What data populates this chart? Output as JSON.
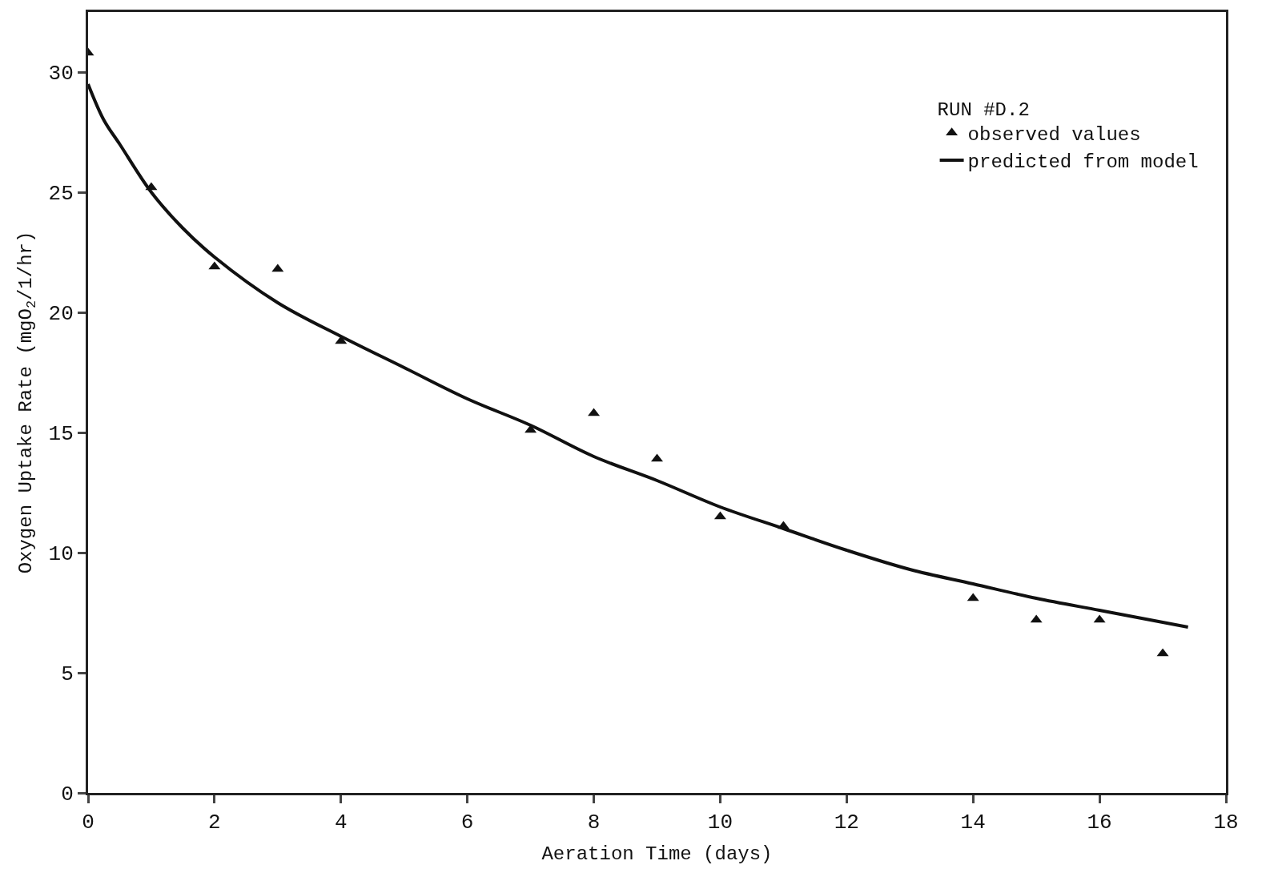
{
  "chart_data": {
    "type": "scatter",
    "xlabel": "Aeration Time (days)",
    "ylabel": "Oxygen Uptake Rate (mgO$_{2}$/1/hr)",
    "legend_title": "RUN #D.2",
    "xlim": [
      0,
      18
    ],
    "xticks": [
      0,
      2,
      4,
      6,
      8,
      10,
      12,
      14,
      16,
      18
    ],
    "ylim": [
      0,
      32.5
    ],
    "yticks": [
      0,
      5,
      10,
      15,
      20,
      25,
      30
    ],
    "legend": "top right",
    "series": [
      {
        "name": "observed values",
        "marker": "triangle",
        "color": "#111111",
        "x": [
          0,
          1,
          2,
          3,
          4,
          7,
          8,
          9,
          10,
          11,
          14,
          15,
          16,
          17
        ],
        "values": [
          30.8,
          25.2,
          21.9,
          21.8,
          18.8,
          15.1,
          15.8,
          13.9,
          11.5,
          11.1,
          8.1,
          7.2,
          7.2,
          5.8
        ]
      },
      {
        "name": "predicted from model",
        "type": "line",
        "marker": "none",
        "line_style": "solid",
        "color": "#111111",
        "x": [
          0,
          0.25,
          0.5,
          1,
          1.5,
          2,
          3,
          4,
          5,
          6,
          7,
          8,
          9,
          10,
          11,
          12,
          13,
          14,
          15,
          16,
          17,
          17.4
        ],
        "values": [
          29.5,
          28.0,
          27.0,
          25.0,
          23.5,
          22.3,
          20.4,
          19.0,
          17.7,
          16.4,
          15.3,
          14.0,
          13.0,
          11.9,
          11.0,
          10.1,
          9.3,
          8.7,
          8.1,
          7.6,
          7.1,
          6.9
        ]
      }
    ]
  }
}
